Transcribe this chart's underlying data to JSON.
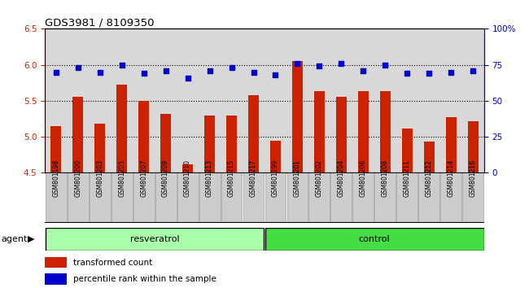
{
  "title": "GDS3981 / 8109350",
  "samples": [
    "GSM801198",
    "GSM801200",
    "GSM801203",
    "GSM801205",
    "GSM801207",
    "GSM801209",
    "GSM801210",
    "GSM801213",
    "GSM801215",
    "GSM801217",
    "GSM801199",
    "GSM801201",
    "GSM801202",
    "GSM801204",
    "GSM801206",
    "GSM801208",
    "GSM801211",
    "GSM801212",
    "GSM801214",
    "GSM801216"
  ],
  "bar_values": [
    5.15,
    5.55,
    5.18,
    5.73,
    5.5,
    5.32,
    4.62,
    5.3,
    5.3,
    5.58,
    4.95,
    6.05,
    5.64,
    5.55,
    5.63,
    5.63,
    5.11,
    4.93,
    5.27,
    5.22
  ],
  "dot_values": [
    70,
    73,
    70,
    75,
    69,
    71,
    66,
    71,
    73,
    70,
    68,
    76,
    74,
    76,
    71,
    75,
    69,
    69,
    70,
    71
  ],
  "ylim_left": [
    4.5,
    6.5
  ],
  "ylim_right": [
    0,
    100
  ],
  "yticks_left": [
    4.5,
    5.0,
    5.5,
    6.0,
    6.5
  ],
  "yticks_right": [
    0,
    25,
    50,
    75,
    100
  ],
  "ytick_labels_right": [
    "0",
    "25",
    "50",
    "75",
    "100%"
  ],
  "bar_color": "#cc2200",
  "dot_color": "#0000cc",
  "grid_color": "#000000",
  "bg_plot": "#d8d8d8",
  "resveratrol_color": "#aaffaa",
  "control_color": "#44dd44",
  "resveratrol_label": "resveratrol",
  "control_label": "control",
  "agent_label": "agent",
  "legend_bar": "transformed count",
  "legend_dot": "percentile rank within the sample",
  "n_resveratrol": 10,
  "n_control": 10
}
